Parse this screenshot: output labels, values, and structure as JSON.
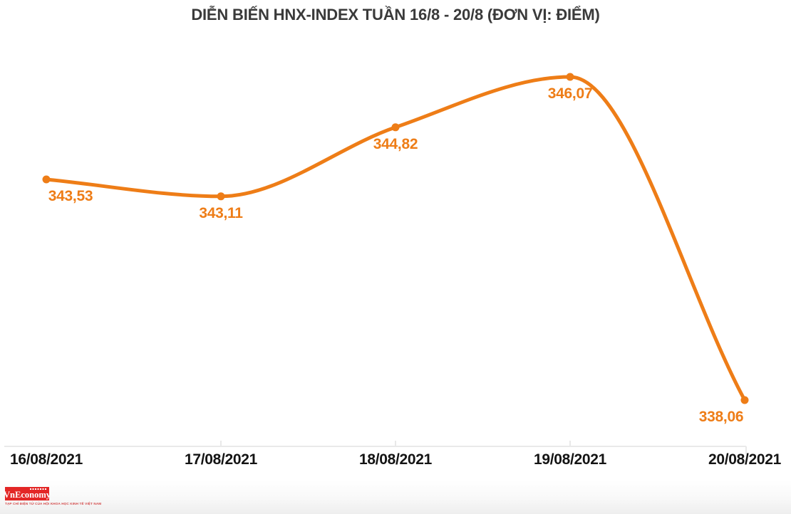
{
  "colors": {
    "line": "#ee7d17",
    "point_label": "#ee7d17",
    "title": "#3a3a3a",
    "axis": "#e9e9e9",
    "x_label": "#141414",
    "logo_red": "#e32726"
  },
  "chart_data": {
    "type": "line",
    "title": "DIỄN BIẾN HNX-INDEX TUẦN 16/8 - 20/8 (ĐƠN VỊ: ĐIỂM)",
    "categories": [
      "16/08/2021",
      "17/08/2021",
      "18/08/2021",
      "19/08/2021",
      "20/08/2021"
    ],
    "values": [
      343.53,
      343.11,
      344.82,
      346.07,
      338.06
    ],
    "point_labels": [
      "343,53",
      "343,11",
      "344,82",
      "346,07",
      "338,06"
    ],
    "ylim": [
      338.06,
      346.07
    ],
    "xlabel": "",
    "ylabel": "",
    "grid": false,
    "legend": "none",
    "smooth": true,
    "marker": "circle"
  },
  "logo": {
    "text": "VnEconomy",
    "tagline": "TẠP CHÍ ĐIỆN TỬ CỦA HỘI KHOA HỌC KINH TẾ VIỆT NAM"
  }
}
